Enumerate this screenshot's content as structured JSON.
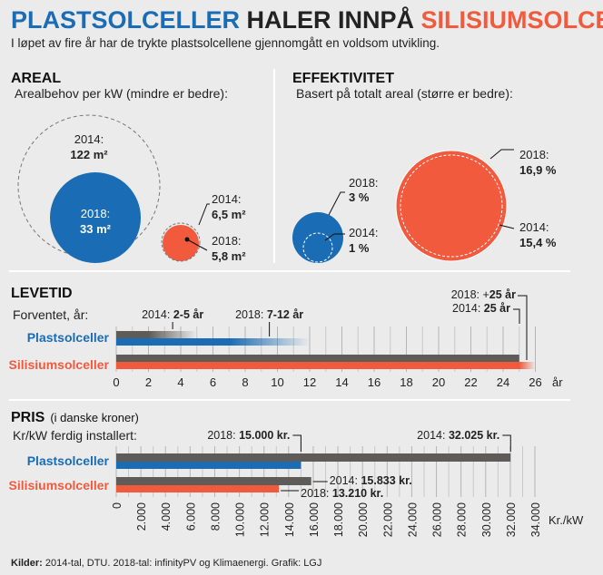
{
  "title": {
    "part1": "PLASTSOLCELLER",
    "part2": " HALER INNPÅ ",
    "part3": "SILISIUMSOLCELLER"
  },
  "subtitle": "I løpet av fire år har de trykte plastsolcellene gjennomgått en voldsom utvikling.",
  "colors": {
    "plast": "#1a6cb4",
    "silisium": "#f15a3d",
    "y2014": "#5f5b58",
    "text": "#222222",
    "bg": "#ebebeb"
  },
  "areal": {
    "heading": "AREAL",
    "sub": "Arealbehov per kW (mindre er bedre):",
    "plast": {
      "y2014_label": "2014:",
      "y2014_value": "122 m²",
      "y2018_label": "2018:",
      "y2018_value": "33 m²",
      "v2014": 122,
      "v2018": 33
    },
    "silisium": {
      "y2014_label": "2014:",
      "y2014_value": "6,5 m²",
      "y2018_label": "2018:",
      "y2018_value": "5,8 m²",
      "v2014": 6.5,
      "v2018": 5.8
    }
  },
  "effektivitet": {
    "heading": "EFFEKTIVITET",
    "sub": "Basert på totalt areal (større er bedre):",
    "plast": {
      "y2018_label": "2018:",
      "y2018_value": "3 %",
      "y2014_label": "2014:",
      "y2014_value": "1 %",
      "v2014": 1,
      "v2018": 3
    },
    "silisium": {
      "y2018_label": "2018:",
      "y2018_value": "16,9 %",
      "y2014_label": "2014:",
      "y2014_value": "15,4 %",
      "v2014": 15.4,
      "v2018": 16.9
    }
  },
  "chart_data": [
    {
      "type": "bar",
      "title": "LEVETID",
      "subtitle": "Forventet, år:",
      "categories": [
        "Plastsolceller",
        "Silisiumsolceller"
      ],
      "series": [
        {
          "name": "2014",
          "values": [
            [
              2,
              5
            ],
            25
          ]
        },
        {
          "name": "2018",
          "values": [
            [
              7,
              12
            ],
            25
          ]
        }
      ],
      "xlim": [
        0,
        26
      ],
      "xticks": [
        0,
        2,
        4,
        6,
        8,
        10,
        12,
        14,
        16,
        18,
        20,
        22,
        24,
        26
      ],
      "xunit": "år",
      "annotations": [
        {
          "pre": "2014: ",
          "bold": "2-5 år"
        },
        {
          "pre": "2018: ",
          "bold": "7-12 år"
        },
        {
          "pre": "2018: +",
          "bold": "25 år"
        },
        {
          "pre": "2014: ",
          "bold": "25 år"
        }
      ]
    },
    {
      "type": "bar",
      "title": "PRIS",
      "title_note": "(i danske kroner)",
      "subtitle": "Kr/kW ferdig installert:",
      "categories": [
        "Plastsolceller",
        "Silisiumsolceller"
      ],
      "series": [
        {
          "name": "2014",
          "values": [
            32025,
            15833
          ]
        },
        {
          "name": "2018",
          "values": [
            15000,
            13210
          ]
        }
      ],
      "xlim": [
        0,
        34000
      ],
      "xticks": [
        "0",
        "2.000",
        "4.000",
        "6.000",
        "8.000",
        "10.000",
        "12.000",
        "14.000",
        "16.000",
        "18.000",
        "20.000",
        "22.000",
        "24.000",
        "26.000",
        "28.000",
        "30.000",
        "32.000",
        "34.000"
      ],
      "xunit": "Kr./kW",
      "annotations": [
        {
          "pre": "2018: ",
          "bold": "15.000 kr."
        },
        {
          "pre": "2014: ",
          "bold": "32.025 kr."
        },
        {
          "pre": "2014: ",
          "bold": "15.833 kr."
        },
        {
          "pre": "2018: ",
          "bold": "13.210 kr."
        }
      ]
    }
  ],
  "footer": {
    "bold": "Kilder:",
    "text": " 2014-tal, DTU. 2018-tal: infinityPV og Klimaenergi. Grafik: LGJ"
  }
}
